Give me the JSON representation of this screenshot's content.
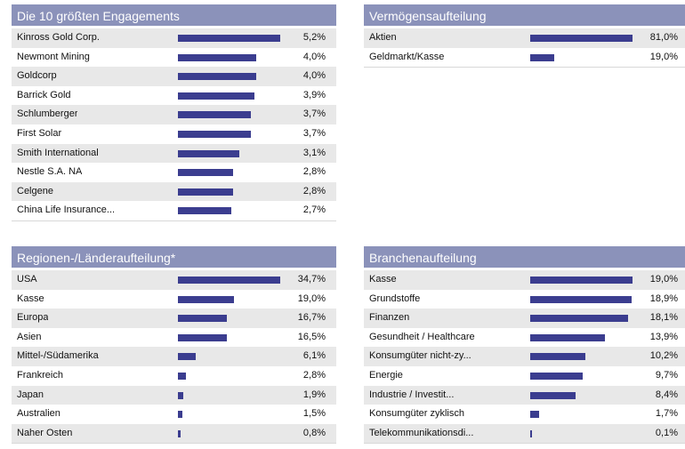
{
  "chart_data": [
    {
      "type": "bar",
      "title": "Die 10 größten Engagements",
      "unit": "%",
      "max": 5.2,
      "categories": [
        "Kinross Gold Corp.",
        "Newmont Mining",
        "Goldcorp",
        "Barrick Gold",
        "Schlumberger",
        "First Solar",
        "Smith International",
        "Nestle S.A. NA",
        "Celgene",
        "China Life Insurance..."
      ],
      "values": [
        5.2,
        4.0,
        4.0,
        3.9,
        3.7,
        3.7,
        3.1,
        2.8,
        2.8,
        2.7
      ],
      "labels": [
        "5,2%",
        "4,0%",
        "4,0%",
        "3,9%",
        "3,7%",
        "3,7%",
        "3,1%",
        "2,8%",
        "2,8%",
        "2,7%"
      ]
    },
    {
      "type": "bar",
      "title": "Vermögensaufteilung",
      "unit": "%",
      "max": 81.0,
      "categories": [
        "Aktien",
        "Geldmarkt/Kasse"
      ],
      "values": [
        81.0,
        19.0
      ],
      "labels": [
        "81,0%",
        "19,0%"
      ]
    },
    {
      "type": "bar",
      "title": "Regionen-/Länderaufteilung*",
      "unit": "%",
      "max": 34.7,
      "categories": [
        "USA",
        "Kasse",
        "Europa",
        "Asien",
        "Mittel-/Südamerika",
        "Frankreich",
        "Japan",
        "Australien",
        "Naher Osten"
      ],
      "values": [
        34.7,
        19.0,
        16.7,
        16.5,
        6.1,
        2.8,
        1.9,
        1.5,
        0.8
      ],
      "labels": [
        "34,7%",
        "19,0%",
        "16,7%",
        "16,5%",
        "6,1%",
        "2,8%",
        "1,9%",
        "1,5%",
        "0,8%"
      ]
    },
    {
      "type": "bar",
      "title": "Branchenaufteilung",
      "unit": "%",
      "max": 19.0,
      "categories": [
        "Kasse",
        "Grundstoffe",
        "Finanzen",
        "Gesundheit / Healthcare",
        "Konsumgüter nicht-zy...",
        "Energie",
        "Industrie / Investit...",
        "Konsumgüter zyklisch",
        "Telekommunikationsdi..."
      ],
      "values": [
        19.0,
        18.9,
        18.1,
        13.9,
        10.2,
        9.7,
        8.4,
        1.7,
        0.1
      ],
      "labels": [
        "19,0%",
        "18,9%",
        "18,1%",
        "13,9%",
        "10,2%",
        "9,7%",
        "8,4%",
        "1,7%",
        "0,1%"
      ]
    }
  ]
}
